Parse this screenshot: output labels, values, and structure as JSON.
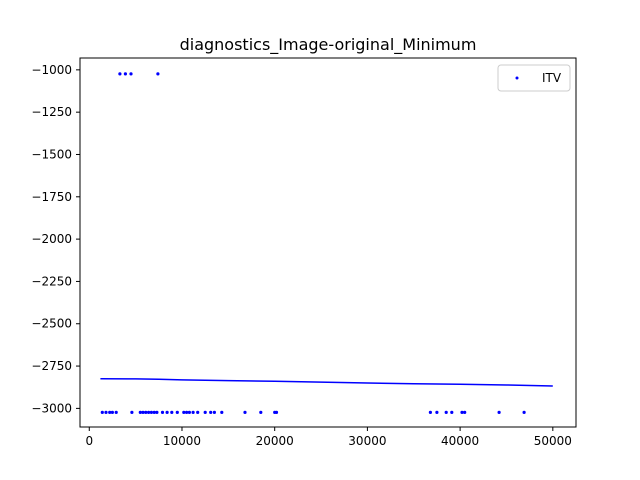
{
  "chart_data": {
    "type": "scatter",
    "title": "diagnostics_Image-original_Minimum",
    "xlabel": "",
    "ylabel": "",
    "xlim": [
      -1000,
      52500
    ],
    "ylim": [
      -3110,
      -930
    ],
    "x_ticks": [
      0,
      10000,
      20000,
      30000,
      40000,
      50000
    ],
    "x_tick_labels": [
      "0",
      "10000",
      "20000",
      "30000",
      "40000",
      "50000"
    ],
    "y_ticks": [
      -1000,
      -1250,
      -1500,
      -1750,
      -2000,
      -2250,
      -2500,
      -2750,
      -3000
    ],
    "y_tick_labels": [
      "−1000",
      "−1250",
      "−1500",
      "−1750",
      "−2000",
      "−2250",
      "−2500",
      "−2750",
      "−3000"
    ],
    "grid": false,
    "legend": {
      "placement": "top-right",
      "entries": [
        "ITV"
      ]
    },
    "series": [
      {
        "name": "ITV",
        "kind": "scatter",
        "color": "#0000ff",
        "points": [
          [
            3300,
            -1024
          ],
          [
            3900,
            -1024
          ],
          [
            4500,
            -1024
          ],
          [
            7400,
            -1024
          ],
          [
            1400,
            -3024
          ],
          [
            1800,
            -3024
          ],
          [
            2200,
            -3024
          ],
          [
            2500,
            -3024
          ],
          [
            2900,
            -3024
          ],
          [
            4600,
            -3024
          ],
          [
            5500,
            -3024
          ],
          [
            5800,
            -3024
          ],
          [
            6100,
            -3024
          ],
          [
            6400,
            -3024
          ],
          [
            6700,
            -3024
          ],
          [
            7000,
            -3024
          ],
          [
            7300,
            -3024
          ],
          [
            7900,
            -3024
          ],
          [
            8400,
            -3024
          ],
          [
            8900,
            -3024
          ],
          [
            9500,
            -3024
          ],
          [
            10200,
            -3024
          ],
          [
            10500,
            -3024
          ],
          [
            10800,
            -3024
          ],
          [
            11200,
            -3024
          ],
          [
            11700,
            -3024
          ],
          [
            12500,
            -3024
          ],
          [
            13100,
            -3024
          ],
          [
            13500,
            -3024
          ],
          [
            14300,
            -3024
          ],
          [
            16800,
            -3024
          ],
          [
            18500,
            -3024
          ],
          [
            20000,
            -3024
          ],
          [
            20200,
            -3024
          ],
          [
            36800,
            -3024
          ],
          [
            37500,
            -3024
          ],
          [
            38500,
            -3024
          ],
          [
            39100,
            -3024
          ],
          [
            40200,
            -3024
          ],
          [
            40500,
            -3024
          ],
          [
            44200,
            -3024
          ],
          [
            46900,
            -3024
          ]
        ]
      },
      {
        "kind": "line",
        "color": "#0000ff",
        "x": [
          1200,
          5000,
          7500,
          10000,
          15000,
          20000,
          25000,
          30000,
          35000,
          40000,
          45000,
          50000
        ],
        "y": [
          -2825,
          -2826,
          -2828,
          -2832,
          -2836,
          -2840,
          -2845,
          -2850,
          -2855,
          -2858,
          -2862,
          -2868
        ]
      }
    ]
  }
}
